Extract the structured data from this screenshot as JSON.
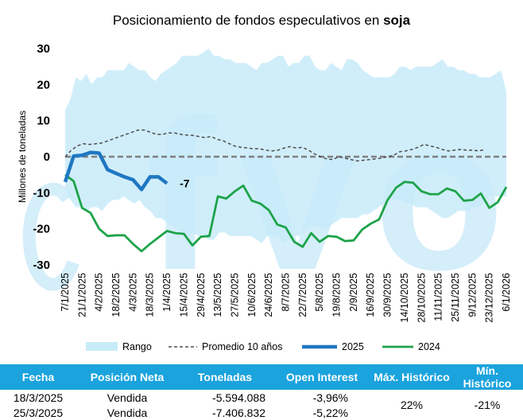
{
  "chart_data": {
    "type": "area",
    "title": {
      "prefix": "Posicionamiento de fondos especulativos en ",
      "emphasis": "soja"
    },
    "ylabel": "Millones de toneladas",
    "ylim": [
      -30,
      30
    ],
    "yticks": [
      30,
      20,
      10,
      0,
      -10,
      -20,
      -30
    ],
    "xlabels": [
      "7/1/2025",
      "21/1/2025",
      "4/2/2025",
      "18/2/2025",
      "4/3/2025",
      "18/3/2025",
      "1/4/2025",
      "15/4/2025",
      "29/4/2025",
      "13/5/2025",
      "27/5/2025",
      "10/6/2025",
      "24/6/2025",
      "8/7/2025",
      "22/7/2025",
      "5/8/2025",
      "19/8/2025",
      "2/9/2025",
      "16/9/2025",
      "30/9/2025",
      "14/10/2025",
      "28/10/2025",
      "11/11/2025",
      "25/11/2025",
      "9/12/2025",
      "23/12/2025",
      "6/1/2026"
    ],
    "zero_line": 0,
    "colors": {
      "range": "#c8ebf9",
      "avg": "#4d4d4d",
      "y2025": "#1f77c2",
      "y2024": "#1ea34a",
      "zero": "#7f7f7f"
    },
    "series": [
      {
        "name": "Rango",
        "kind": "band",
        "upper": [
          13,
          16,
          22,
          21,
          23,
          20,
          22,
          22,
          24,
          24,
          24,
          24,
          26,
          25,
          24,
          24,
          22,
          21,
          23,
          24,
          25,
          26,
          28,
          28,
          28,
          28,
          29,
          30,
          28,
          28,
          27,
          27,
          26,
          26,
          26,
          25,
          24,
          26,
          26,
          27,
          28,
          28,
          25,
          26,
          26,
          28,
          28,
          25,
          24,
          24,
          26,
          25,
          24,
          27,
          27,
          26,
          24,
          23,
          22,
          22,
          22,
          22,
          23,
          25,
          25,
          24,
          25,
          25,
          25,
          25,
          26,
          27,
          25,
          25,
          24,
          24,
          23,
          23,
          22,
          22,
          22,
          23,
          24,
          18
        ],
        "lower": [
          -9,
          -12,
          -14,
          -14,
          -15,
          -14,
          -14,
          -15,
          -13,
          -12,
          -12,
          -11,
          -12,
          -13,
          -12,
          -14,
          -15,
          -17,
          -17,
          -18,
          -19,
          -20,
          -22,
          -22,
          -21,
          -22,
          -22,
          -23,
          -23,
          -21,
          -21,
          -22,
          -22,
          -22,
          -22,
          -22,
          -23,
          -24,
          -22,
          -22,
          -22,
          -24,
          -23,
          -22,
          -22,
          -21,
          -20,
          -19,
          -20,
          -20,
          -19,
          -18,
          -17,
          -17,
          -17,
          -17,
          -16,
          -16,
          -15,
          -14,
          -13,
          -12,
          -12,
          -12,
          -13,
          -13,
          -14,
          -14,
          -14,
          -15,
          -16,
          -17,
          -17,
          -16,
          -15,
          -15,
          -15,
          -14,
          -14,
          -12,
          -11,
          -11,
          -11,
          -11
        ]
      },
      {
        "name": "Promedio 10 años",
        "kind": "dashed",
        "values": [
          0,
          1.8,
          3,
          3.6,
          3.4,
          3.6,
          3.8,
          4.4,
          5,
          5.6,
          6.2,
          6.8,
          7.4,
          7.4,
          6.8,
          6.2,
          6.2,
          6.6,
          6.6,
          6.2,
          6.0,
          5.9,
          5.6,
          5.3,
          5.6,
          4.8,
          4.4,
          3.6,
          2.9,
          2.6,
          2.4,
          2.2,
          2.2,
          1.8,
          1.6,
          1.8,
          2.4,
          2.8,
          2.4,
          2.6,
          1.8,
          0.8,
          0,
          -0.6,
          -0.8,
          0,
          -0.4,
          -0.8,
          -1.2,
          -1,
          -0.8,
          -0.6,
          -0.4,
          0,
          0.4,
          1.4,
          1.6,
          2,
          2.6,
          3.4,
          3,
          2.6,
          2,
          1.6,
          1.8,
          2,
          1.8,
          1.8,
          1.6,
          2
        ]
      },
      {
        "name": "2025",
        "kind": "line",
        "values": [
          -7,
          0.2,
          0.4,
          1.2,
          1,
          -3.6,
          -4.6,
          -5.6,
          -6.4,
          -9.1,
          -5.6,
          -5.6,
          -7.4
        ],
        "annotation": "-7"
      },
      {
        "name": "2024",
        "kind": "line",
        "values": [
          -5,
          -6.8,
          -14.2,
          -15.6,
          -20,
          -22,
          -21.8,
          -21.8,
          -24.2,
          -26.2,
          -24.2,
          -22.4,
          -20.6,
          -21.2,
          -21.4,
          -24.6,
          -22.2,
          -22,
          -11,
          -11.6,
          -9.6,
          -8,
          -12.2,
          -13,
          -14.8,
          -18.8,
          -19.6,
          -23.6,
          -25,
          -21.2,
          -23.6,
          -22,
          -22.2,
          -23.4,
          -23.2,
          -20.2,
          -18.6,
          -17.4,
          -12,
          -8.6,
          -7,
          -7.2,
          -9.6,
          -10.4,
          -10.4,
          -8.8,
          -9.6,
          -12.2,
          -12,
          -10.2,
          -14.2,
          -12.6,
          -8.4
        ]
      }
    ],
    "legend": {
      "position": "bottom"
    },
    "grid": false
  },
  "summary_table": {
    "headers": [
      "Fecha",
      "Posición Neta",
      "Toneladas",
      "Open Interest",
      "Máx. Histórico",
      "Mín. Histórico"
    ],
    "rows": [
      [
        "18/3/2025",
        "Vendida",
        "-5.594.088",
        "-3,96%"
      ],
      [
        "25/3/2025",
        "Vendida",
        "-7.406.832",
        "-5,22%"
      ]
    ],
    "max_historico": "22%",
    "min_historico": "-21%"
  }
}
